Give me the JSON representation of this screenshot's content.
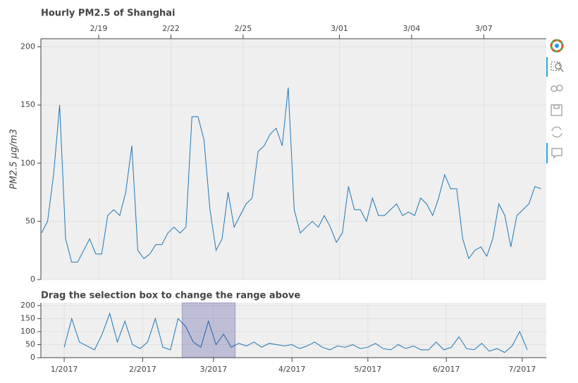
{
  "chart_data": [
    {
      "type": "line",
      "title": "Hourly PM2.5 of Shanghai",
      "y_label": "PM2.5 μg/m3",
      "x_axis": "top",
      "grid": true,
      "color": "#1f77b4",
      "xlim": [
        "2017-02-16T14:20",
        "2017-03-09T14:20"
      ],
      "xticks": [
        {
          "value": "2017-02-19T00:00",
          "label": "2/19"
        },
        {
          "value": "2017-02-22T00:00",
          "label": "2/22"
        },
        {
          "value": "2017-02-25T00:00",
          "label": "2/25"
        },
        {
          "value": "2017-03-01T00:00",
          "label": "3/01"
        },
        {
          "value": "2017-03-04T00:00",
          "label": "3/04"
        },
        {
          "value": "2017-03-07T00:00",
          "label": "3/07"
        }
      ],
      "ylim": [
        0,
        207
      ],
      "yticks": [
        0,
        50,
        100,
        150,
        200
      ],
      "x": [
        "2017-02-16T15:00",
        "2017-02-16T21:00",
        "2017-02-17T03:00",
        "2017-02-17T09:00",
        "2017-02-17T15:00",
        "2017-02-17T21:00",
        "2017-02-18T03:00",
        "2017-02-18T09:00",
        "2017-02-18T15:00",
        "2017-02-18T21:00",
        "2017-02-19T03:00",
        "2017-02-19T09:00",
        "2017-02-19T15:00",
        "2017-02-19T21:00",
        "2017-02-20T03:00",
        "2017-02-20T09:00",
        "2017-02-20T15:00",
        "2017-02-20T21:00",
        "2017-02-21T03:00",
        "2017-02-21T09:00",
        "2017-02-21T15:00",
        "2017-02-21T21:00",
        "2017-02-22T03:00",
        "2017-02-22T09:00",
        "2017-02-22T15:00",
        "2017-02-22T21:00",
        "2017-02-23T03:00",
        "2017-02-23T09:00",
        "2017-02-23T15:00",
        "2017-02-23T21:00",
        "2017-02-24T03:00",
        "2017-02-24T09:00",
        "2017-02-24T15:00",
        "2017-02-24T21:00",
        "2017-02-25T03:00",
        "2017-02-25T09:00",
        "2017-02-25T15:00",
        "2017-02-25T21:00",
        "2017-02-26T03:00",
        "2017-02-26T09:00",
        "2017-02-26T15:00",
        "2017-02-26T21:00",
        "2017-02-27T03:00",
        "2017-02-27T09:00",
        "2017-02-27T15:00",
        "2017-02-27T21:00",
        "2017-02-28T03:00",
        "2017-02-28T09:00",
        "2017-02-28T15:00",
        "2017-02-28T21:00",
        "2017-03-01T03:00",
        "2017-03-01T09:00",
        "2017-03-01T15:00",
        "2017-03-01T21:00",
        "2017-03-02T03:00",
        "2017-03-02T09:00",
        "2017-03-02T15:00",
        "2017-03-02T21:00",
        "2017-03-03T03:00",
        "2017-03-03T09:00",
        "2017-03-03T15:00",
        "2017-03-03T21:00",
        "2017-03-04T03:00",
        "2017-03-04T09:00",
        "2017-03-04T15:00",
        "2017-03-04T21:00",
        "2017-03-05T03:00",
        "2017-03-05T09:00",
        "2017-03-05T15:00",
        "2017-03-05T21:00",
        "2017-03-06T03:00",
        "2017-03-06T09:00",
        "2017-03-06T15:00",
        "2017-03-06T21:00",
        "2017-03-07T03:00",
        "2017-03-07T09:00",
        "2017-03-07T15:00",
        "2017-03-07T21:00",
        "2017-03-08T03:00",
        "2017-03-08T09:00",
        "2017-03-08T15:00",
        "2017-03-08T21:00",
        "2017-03-09T03:00",
        "2017-03-09T09:00"
      ],
      "values": [
        40,
        50,
        90,
        150,
        35,
        15,
        15,
        25,
        35,
        22,
        22,
        55,
        60,
        55,
        75,
        115,
        25,
        18,
        22,
        30,
        30,
        40,
        45,
        40,
        45,
        140,
        140,
        120,
        60,
        25,
        35,
        75,
        45,
        55,
        65,
        70,
        110,
        115,
        125,
        130,
        115,
        165,
        60,
        40,
        45,
        50,
        45,
        55,
        45,
        32,
        40,
        80,
        60,
        60,
        50,
        70,
        55,
        55,
        60,
        65,
        55,
        58,
        55,
        70,
        65,
        55,
        70,
        90,
        78,
        78,
        35,
        18,
        25,
        28,
        20,
        35,
        65,
        55,
        28,
        55,
        60,
        65,
        80,
        78
      ]
    },
    {
      "type": "line",
      "title": "Drag the selection box to change the range above",
      "x_axis": "bottom",
      "grid": true,
      "color": "#1f77b4",
      "xlim": [
        "2016-12-22T19:00",
        "2017-07-10T12:00"
      ],
      "xticks": [
        {
          "value": "2017-01-01T00:00",
          "label": "1/2017"
        },
        {
          "value": "2017-02-01T00:00",
          "label": "2/2017"
        },
        {
          "value": "2017-03-01T00:00",
          "label": "3/2017"
        },
        {
          "value": "2017-04-01T00:00",
          "label": "4/2017"
        },
        {
          "value": "2017-05-01T00:00",
          "label": "5/2017"
        },
        {
          "value": "2017-06-01T00:00",
          "label": "6/2017"
        },
        {
          "value": "2017-07-01T00:00",
          "label": "7/2017"
        }
      ],
      "ylim": [
        0,
        211
      ],
      "yticks": [
        0,
        50,
        100,
        150,
        200
      ],
      "x": [
        "2017-01-01T00:00",
        "2017-01-04T00:00",
        "2017-01-07T00:00",
        "2017-01-10T00:00",
        "2017-01-13T00:00",
        "2017-01-16T00:00",
        "2017-01-19T00:00",
        "2017-01-22T00:00",
        "2017-01-25T00:00",
        "2017-01-28T00:00",
        "2017-01-31T00:00",
        "2017-02-03T00:00",
        "2017-02-06T00:00",
        "2017-02-09T00:00",
        "2017-02-12T00:00",
        "2017-02-15T00:00",
        "2017-02-18T00:00",
        "2017-02-21T00:00",
        "2017-02-24T00:00",
        "2017-02-27T00:00",
        "2017-03-02T00:00",
        "2017-03-05T00:00",
        "2017-03-08T00:00",
        "2017-03-11T00:00",
        "2017-03-14T00:00",
        "2017-03-17T00:00",
        "2017-03-20T00:00",
        "2017-03-23T00:00",
        "2017-03-26T00:00",
        "2017-03-29T00:00",
        "2017-04-01T00:00",
        "2017-04-04T00:00",
        "2017-04-07T00:00",
        "2017-04-10T00:00",
        "2017-04-13T00:00",
        "2017-04-16T00:00",
        "2017-04-19T00:00",
        "2017-04-22T00:00",
        "2017-04-25T00:00",
        "2017-04-28T00:00",
        "2017-05-01T00:00",
        "2017-05-04T00:00",
        "2017-05-07T00:00",
        "2017-05-10T00:00",
        "2017-05-13T00:00",
        "2017-05-16T00:00",
        "2017-05-19T00:00",
        "2017-05-22T00:00",
        "2017-05-25T00:00",
        "2017-05-28T00:00",
        "2017-05-31T00:00",
        "2017-06-03T00:00",
        "2017-06-06T00:00",
        "2017-06-09T00:00",
        "2017-06-12T00:00",
        "2017-06-15T00:00",
        "2017-06-18T00:00",
        "2017-06-21T00:00",
        "2017-06-24T00:00",
        "2017-06-27T00:00",
        "2017-06-30T00:00",
        "2017-07-03T00:00"
      ],
      "values": [
        40,
        150,
        60,
        45,
        30,
        90,
        170,
        60,
        140,
        50,
        35,
        60,
        150,
        40,
        30,
        150,
        120,
        60,
        40,
        140,
        50,
        90,
        40,
        55,
        45,
        60,
        40,
        55,
        50,
        45,
        50,
        35,
        45,
        60,
        40,
        30,
        45,
        40,
        50,
        35,
        40,
        55,
        35,
        30,
        50,
        35,
        45,
        30,
        30,
        60,
        30,
        40,
        80,
        35,
        30,
        55,
        25,
        35,
        20,
        45,
        100,
        30
      ]
    }
  ]
}
